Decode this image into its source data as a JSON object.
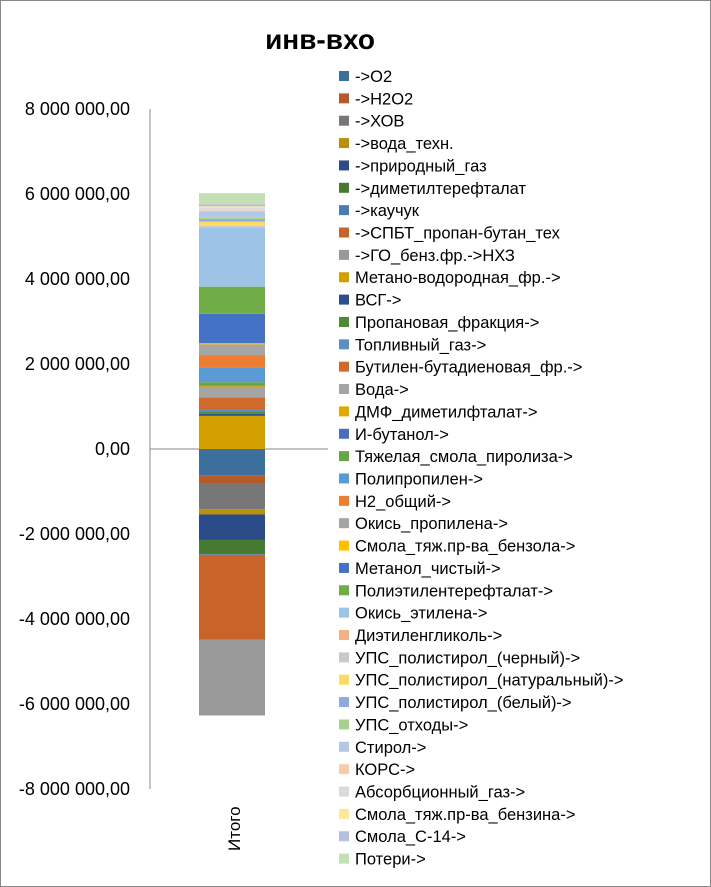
{
  "chart_data": {
    "type": "bar",
    "stacked": true,
    "title": "инв-вхо",
    "categories": [
      "Итого"
    ],
    "ylim": [
      -8000000,
      8000000
    ],
    "ytick_step": 2000000,
    "ytick_labels": [
      "8 000 000,00",
      "6 000 000,00",
      "4 000 000,00",
      "2 000 000,00",
      "0,00",
      "-2 000 000,00",
      "-4 000 000,00",
      "-6 000 000,00",
      "-8 000 000,00"
    ],
    "xlabel": "",
    "ylabel": "",
    "grid": false,
    "legend_position": "right",
    "series": [
      {
        "name": "->O2",
        "color": "#3d6f9c",
        "values": [
          -620000
        ]
      },
      {
        "name": "->H2O2",
        "color": "#b55a2a",
        "values": [
          -180000
        ]
      },
      {
        "name": "->ХОВ",
        "color": "#777777",
        "values": [
          -620000
        ]
      },
      {
        "name": "->вода_техн.",
        "color": "#b8900a",
        "values": [
          -120000
        ]
      },
      {
        "name": "->природный_газ",
        "color": "#2a4a88",
        "values": [
          -600000
        ]
      },
      {
        "name": "->диметилтерефталат",
        "color": "#467a32",
        "values": [
          -330000
        ]
      },
      {
        "name": "->каучук",
        "color": "#4a7eb3",
        "values": [
          -20000
        ]
      },
      {
        "name": "->СПБТ_пропан-бутан_тех",
        "color": "#c8642a",
        "values": [
          -2000000
        ]
      },
      {
        "name": "->ГО_бенз.фр.->НХЗ",
        "color": "#999999",
        "values": [
          -1780000
        ]
      },
      {
        "name": "Метано-водородная_фр.->",
        "color": "#d4a000",
        "values": [
          780000
        ]
      },
      {
        "name": "ВСГ->",
        "color": "#2e4d8f",
        "values": [
          50000
        ]
      },
      {
        "name": "Пропановая_фракция->",
        "color": "#4f8a37",
        "values": [
          60000
        ]
      },
      {
        "name": "Топливный_газ->",
        "color": "#5b8fc4",
        "values": [
          40000
        ]
      },
      {
        "name": "Бутилен-бутадиеновая_фр.->",
        "color": "#d06a2c",
        "values": [
          280000
        ]
      },
      {
        "name": "Вода->",
        "color": "#a5a5a5",
        "values": [
          250000
        ]
      },
      {
        "name": "ДМФ_диметилфталат->",
        "color": "#e0a800",
        "values": [
          20000
        ]
      },
      {
        "name": "И-бутанол->",
        "color": "#4a6fbf",
        "values": [
          10000
        ]
      },
      {
        "name": "Тяжелая_смола_пиролиза->",
        "color": "#6aa545",
        "values": [
          80000
        ]
      },
      {
        "name": "Полипропилен->",
        "color": "#5b9bd5",
        "values": [
          350000
        ]
      },
      {
        "name": "H2_общий->",
        "color": "#ed7d31",
        "values": [
          280000
        ]
      },
      {
        "name": "Окись_пропилена->",
        "color": "#a5a5a5",
        "values": [
          260000
        ]
      },
      {
        "name": "Смола_тяж.пр-ва_бензола->",
        "color": "#ffc000",
        "values": [
          30000
        ]
      },
      {
        "name": "Метанол_чистый->",
        "color": "#4472c4",
        "values": [
          690000
        ]
      },
      {
        "name": "Полиэтилентерефталат->",
        "color": "#70ad47",
        "values": [
          640000
        ]
      },
      {
        "name": "Окись_этилена->",
        "color": "#9dc3e6",
        "values": [
          1380000
        ]
      },
      {
        "name": "Диэтиленгликоль->",
        "color": "#f4b183",
        "values": [
          20000
        ]
      },
      {
        "name": "УПС_полистирол_(черный)->",
        "color": "#c9c9c9",
        "values": [
          30000
        ]
      },
      {
        "name": "УПС_полистирол_(натуральный)->",
        "color": "#ffd966",
        "values": [
          100000
        ]
      },
      {
        "name": "УПС_полистирол_(белый)->",
        "color": "#8faadc",
        "values": [
          60000
        ]
      },
      {
        "name": "УПС_отходы->",
        "color": "#a9d18e",
        "values": [
          30000
        ]
      },
      {
        "name": "Стирол->",
        "color": "#b4c7e7",
        "values": [
          150000
        ]
      },
      {
        "name": "КОРС->",
        "color": "#f8cbad",
        "values": [
          20000
        ]
      },
      {
        "name": "Абсорбционный_газ->",
        "color": "#dbdbdb",
        "values": [
          60000
        ]
      },
      {
        "name": "Смола_тяж.пр-ва_бензина->",
        "color": "#ffe699",
        "values": [
          40000
        ]
      },
      {
        "name": "Смола_С-14->",
        "color": "#b4c0e0",
        "values": [
          50000
        ]
      },
      {
        "name": "Потери->",
        "color": "#c5e0b4",
        "values": [
          260000
        ]
      }
    ]
  }
}
